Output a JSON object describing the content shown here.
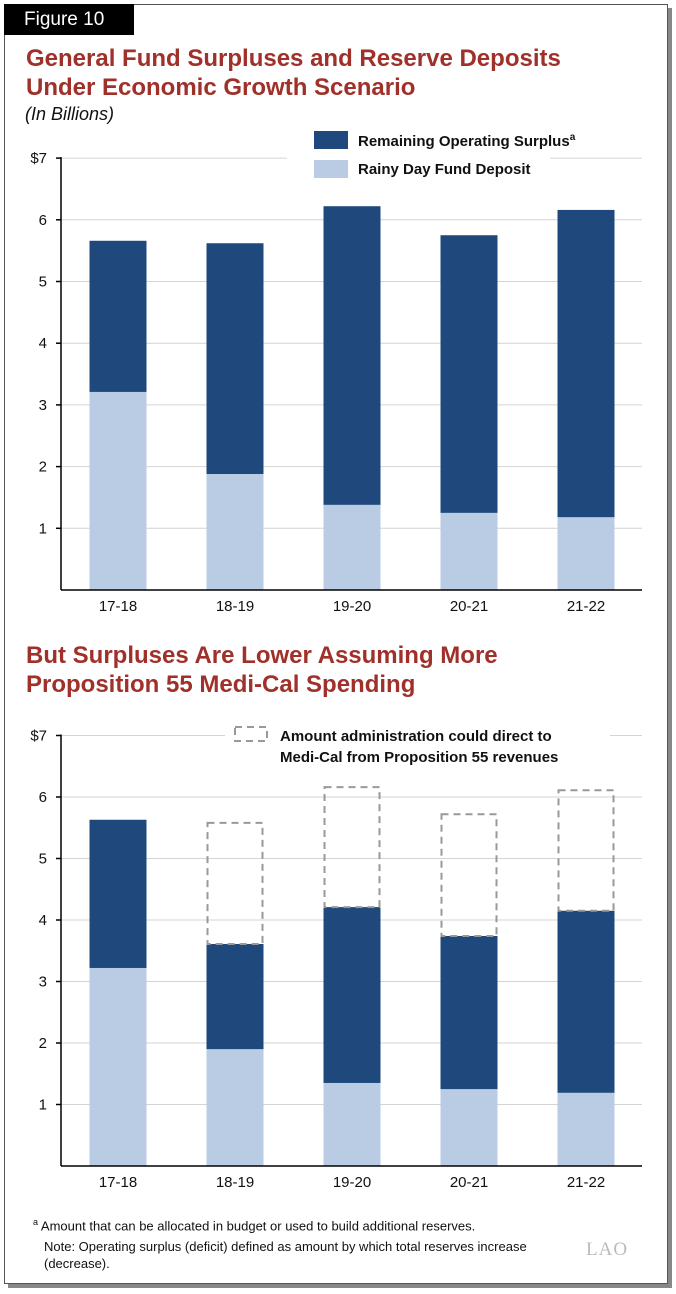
{
  "figure_label": "Figure 10",
  "footnote_a": "Amount that can be allocated in budget or used to build additional reserves.",
  "footnote_marker": "a",
  "note": "Note: Operating surplus (deficit) defined as amount by which total reserves increase (decrease).",
  "logo_text": "LAO",
  "colors": {
    "surplus": "#1f497d",
    "rainy_day": "#b9cce4",
    "title": "#a0302a"
  },
  "chart_data": [
    {
      "type": "bar",
      "stacked": true,
      "title": "General Fund Surpluses and Reserve Deposits Under Economic Growth Scenario",
      "subtitle": "(In Billions)",
      "categories": [
        "17-18",
        "18-19",
        "19-20",
        "20-21",
        "21-22"
      ],
      "ylim": [
        0,
        7
      ],
      "yticks": [
        "1",
        "2",
        "3",
        "4",
        "5",
        "6",
        "$7"
      ],
      "grid": true,
      "legend_position": "top-right",
      "series": [
        {
          "name": "Rainy Day Fund Deposit",
          "color": "#b9cce4",
          "values": [
            3.21,
            1.88,
            1.38,
            1.25,
            1.18
          ]
        },
        {
          "name": "Remaining Operating Surplus",
          "name_superscript": "a",
          "color": "#1f497d",
          "values": [
            2.45,
            3.74,
            4.84,
            4.5,
            4.98
          ]
        }
      ]
    },
    {
      "type": "bar",
      "stacked": true,
      "title": "But Surpluses Are Lower Assuming More Proposition 55 Medi-Cal Spending",
      "categories": [
        "17-18",
        "18-19",
        "19-20",
        "20-21",
        "21-22"
      ],
      "ylim": [
        0,
        7
      ],
      "yticks": [
        "1",
        "2",
        "3",
        "4",
        "5",
        "6",
        "$7"
      ],
      "grid": true,
      "legend_position": "top-right",
      "series": [
        {
          "color": "#b9cce4",
          "values": [
            3.22,
            1.9,
            1.35,
            1.25,
            1.19
          ]
        },
        {
          "color": "#1f497d",
          "values": [
            2.41,
            1.71,
            2.86,
            2.49,
            2.96
          ]
        },
        {
          "name": "Amount administration could direct to Medi-Cal from Proposition 55 revenues",
          "style": "dashed-outline",
          "values": [
            0,
            1.97,
            1.95,
            1.98,
            1.96
          ]
        }
      ]
    }
  ]
}
